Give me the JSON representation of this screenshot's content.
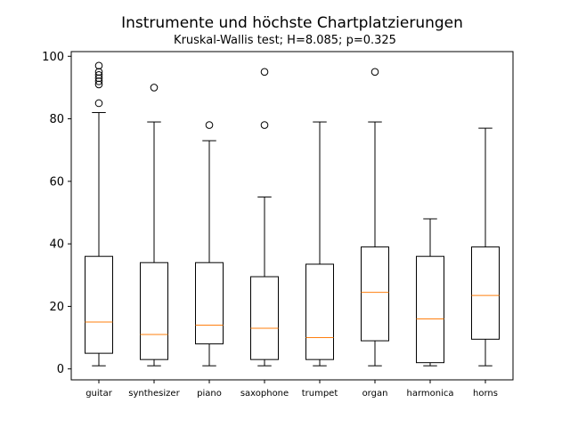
{
  "chart_data": {
    "type": "boxplot",
    "title": "Instrumente und höchste Chartplatzierungen",
    "subtitle": "Kruskal-Wallis test; H=8.085; p=0.325",
    "xlabel": "",
    "ylabel": "",
    "ylim": [
      -3.5,
      101.5
    ],
    "yticks": [
      0,
      20,
      40,
      60,
      80,
      100
    ],
    "grid": false,
    "colors": {
      "box": "#000000",
      "median": "#ff7f0e",
      "flier": "#000000"
    },
    "categories": [
      "guitar",
      "synthesizer",
      "piano",
      "saxophone",
      "trumpet",
      "organ",
      "harmonica",
      "horns"
    ],
    "boxes": [
      {
        "label": "guitar",
        "whislo": 1,
        "q1": 5,
        "med": 15,
        "q3": 36,
        "whishi": 82,
        "fliers": [
          85,
          91,
          92,
          93,
          94,
          95,
          97
        ]
      },
      {
        "label": "synthesizer",
        "whislo": 1,
        "q1": 3,
        "med": 11,
        "q3": 34,
        "whishi": 79,
        "fliers": [
          90
        ]
      },
      {
        "label": "piano",
        "whislo": 1,
        "q1": 8,
        "med": 14,
        "q3": 34,
        "whishi": 73,
        "fliers": [
          78
        ]
      },
      {
        "label": "saxophone",
        "whislo": 1,
        "q1": 3,
        "med": 13,
        "q3": 29.5,
        "whishi": 55,
        "fliers": [
          78,
          95
        ]
      },
      {
        "label": "trumpet",
        "whislo": 1,
        "q1": 3,
        "med": 10,
        "q3": 33.5,
        "whishi": 79,
        "fliers": []
      },
      {
        "label": "organ",
        "whislo": 1,
        "q1": 9,
        "med": 24.5,
        "q3": 39,
        "whishi": 79,
        "fliers": [
          95
        ]
      },
      {
        "label": "harmonica",
        "whislo": 1,
        "q1": 2,
        "med": 16,
        "q3": 36,
        "whishi": 48,
        "fliers": []
      },
      {
        "label": "horns",
        "whislo": 1,
        "q1": 9.5,
        "med": 23.5,
        "q3": 39,
        "whishi": 77,
        "fliers": []
      }
    ]
  }
}
